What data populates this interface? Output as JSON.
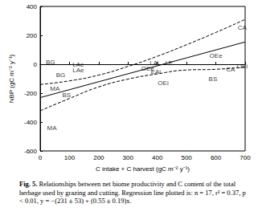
{
  "chart_data": {
    "type": "scatter",
    "xlabel": "C intake + C harvest (gC m⁻² y⁻¹)",
    "ylabel": "NBP (gC m⁻² y⁻¹)",
    "xlim": [
      0,
      700
    ],
    "xticks": [
      0,
      100,
      200,
      300,
      400,
      500,
      600,
      700
    ],
    "ylim": [
      -600,
      400
    ],
    "yticks": [
      -600,
      -400,
      -200,
      0,
      200,
      400
    ],
    "grid": false,
    "caption_label": "Fig. 5.",
    "caption": "Relationships between net biome productivity and C content of the total herbage used by grazing and cutting. Regression line plotted is: n = 17, r² = 0.37, p < 0.01, y = −(231 ± 53) + (0.55 ± 0.19)x.",
    "series": [
      {
        "type": "scatter",
        "marker": "text",
        "color": "#000000",
        "x": [
          690,
          35,
          70,
          130,
          130,
          390,
          440,
          367,
          395,
          600,
          650,
          690,
          590,
          420,
          50,
          90,
          40
        ],
        "values": [
          255,
          15,
          -75,
          -5,
          -40,
          10,
          10,
          -30,
          -55,
          60,
          -35,
          -15,
          -100,
          -130,
          -170,
          -215,
          -440
        ],
        "labels": [
          "CA",
          "BG",
          "BG",
          "LAe",
          "LAe",
          "LAi",
          "LE",
          "OEe",
          "EAi",
          "OEe",
          "CA",
          "OEi",
          "BS",
          "OEi",
          "MA",
          "BS",
          "MA"
        ]
      },
      {
        "type": "line",
        "line_style": "solid",
        "color": "#000000",
        "x": [
          0,
          700
        ],
        "values": [
          -231,
          154
        ]
      },
      {
        "type": "line",
        "line_style": "dashed",
        "color": "#000000",
        "x": [
          0,
          100,
          200,
          300,
          400,
          500,
          600,
          700
        ],
        "values": [
          -140,
          -115,
          -75,
          -15,
          55,
          135,
          220,
          310
        ]
      },
      {
        "type": "line",
        "line_style": "dashed",
        "color": "#000000",
        "x": [
          0,
          100,
          200,
          300,
          400,
          500,
          600,
          700
        ],
        "values": [
          -322,
          -237,
          -157,
          -103,
          -67,
          -40,
          -35,
          -20
        ]
      }
    ]
  }
}
